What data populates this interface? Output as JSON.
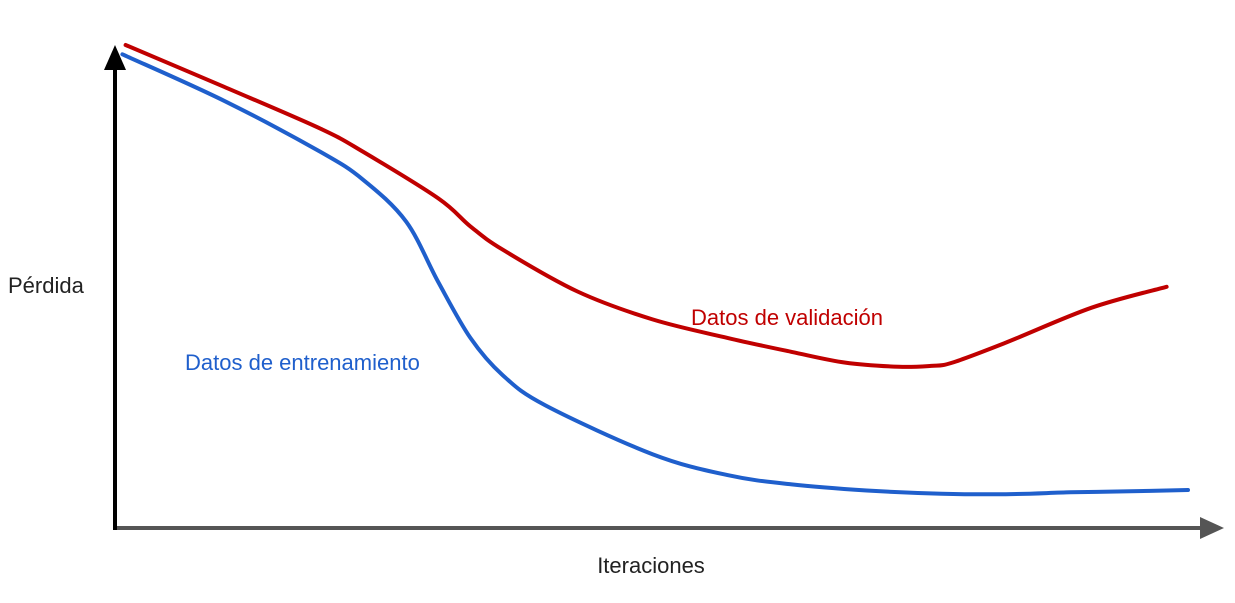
{
  "chart_data": {
    "type": "line",
    "xlabel": "Iteraciones",
    "ylabel": "Pérdida",
    "xlim": [
      0,
      100
    ],
    "ylim": [
      0,
      100
    ],
    "grid": false,
    "series": [
      {
        "name": "Datos de validación",
        "color": "#c00000",
        "x": [
          0.8,
          10,
          19,
          23,
          30,
          33,
          36,
          43,
          50,
          57,
          63,
          68,
          73,
          76,
          78,
          83,
          91,
          98
        ],
        "y": [
          100,
          91,
          82,
          77,
          67,
          61,
          56,
          47,
          41,
          37,
          34,
          31.7,
          30.8,
          31,
          31.7,
          36,
          43.5,
          48
        ]
      },
      {
        "name": "Datos de entrenamiento",
        "color": "#1f5fcc",
        "x": [
          0.5,
          10,
          19,
          23,
          27,
          30,
          33,
          36,
          40,
          50,
          57,
          63,
          70,
          77,
          83,
          89,
          94,
          100
        ],
        "y": [
          98,
          88,
          77,
          71,
          62,
          49,
          37,
          29,
          22.5,
          12,
          7.5,
          5.5,
          4.2,
          3.5,
          3.4,
          3.8,
          4,
          4.3
        ]
      }
    ]
  }
}
